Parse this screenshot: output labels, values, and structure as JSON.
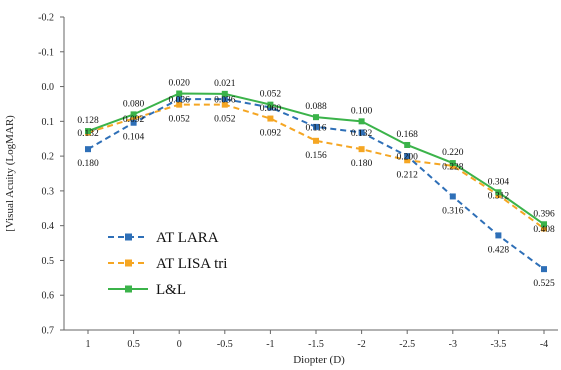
{
  "chart_data": {
    "type": "line",
    "xlabel": "Diopter (D)",
    "ylabel": "[Visual Acuity (LogMAR)",
    "categories": [
      "1",
      "0.5",
      "0",
      "-0.5",
      "-1",
      "-1.5",
      "-2",
      "-2.5",
      "-3",
      "-3.5",
      "-4"
    ],
    "x": [
      1,
      0.5,
      0,
      -0.5,
      -1,
      -1.5,
      -2,
      -2.5,
      -3,
      -3.5,
      -4
    ],
    "ylim": [
      -0.2,
      0.7
    ],
    "y_reversed": true,
    "yticks": [
      "-0.2",
      "-0.1",
      "0.0",
      "0.1",
      "0.2",
      "0.3",
      "0.4",
      "0.5",
      "0.6",
      "0.7"
    ],
    "ytick_values": [
      -0.2,
      -0.1,
      0.0,
      0.1,
      0.2,
      0.3,
      0.4,
      0.5,
      0.6,
      0.7
    ],
    "grid": false,
    "legend_position": "bottom-left",
    "series": [
      {
        "name": "AT LARA",
        "color": "#2e6fb7",
        "dash": true,
        "values": [
          0.18,
          0.104,
          0.036,
          0.036,
          0.06,
          0.116,
          0.132,
          0.2,
          0.316,
          0.428,
          0.525
        ],
        "labels": [
          "0.180",
          "0.104",
          "",
          "",
          "",
          "",
          "",
          "",
          "0.316",
          "0.428",
          "0.525"
        ],
        "label_pos": [
          "below",
          "below",
          "",
          "",
          "",
          "",
          "",
          "",
          "below",
          "below",
          "below"
        ]
      },
      {
        "name": "AT LISA tri",
        "color": "#f5a623",
        "dash": true,
        "values": [
          0.132,
          0.092,
          0.052,
          0.052,
          0.092,
          0.156,
          0.18,
          0.212,
          0.228,
          0.312,
          0.408
        ],
        "labels": [
          "0.132",
          "0.092",
          "0.052",
          "0.052",
          "0.092",
          "0.156",
          "0.180",
          "0.212",
          "0.228",
          "0.312",
          "0.408"
        ],
        "label_pos": [
          "inline",
          "inline",
          "below",
          "below",
          "below",
          "below",
          "below",
          "below",
          "inline",
          "inline",
          "inline"
        ]
      },
      {
        "name": "L&L",
        "color": "#3bb34a",
        "dash": false,
        "values": [
          0.128,
          0.08,
          0.02,
          0.021,
          0.052,
          0.088,
          0.1,
          0.168,
          0.22,
          0.304,
          0.396
        ],
        "labels": [
          "0.128",
          "0.080",
          "0.020",
          "0.021",
          "0.052",
          "0.088",
          "0.100",
          "0.168",
          "0.220",
          "0.304",
          "0.396"
        ],
        "label_pos": [
          "above",
          "above",
          "above",
          "above",
          "above",
          "above",
          "above",
          "above",
          "above",
          "above",
          "above"
        ]
      }
    ],
    "extra_labels": [
      {
        "text": "0.036",
        "xi": 2,
        "y": 0.036
      },
      {
        "text": "0.036",
        "xi": 3,
        "y": 0.036
      },
      {
        "text": "0.060",
        "xi": 4,
        "y": 0.06
      },
      {
        "text": "0.116",
        "xi": 5,
        "y": 0.116
      },
      {
        "text": "0.132",
        "xi": 6,
        "y": 0.132
      },
      {
        "text": "0.200",
        "xi": 7,
        "y": 0.2
      }
    ]
  }
}
